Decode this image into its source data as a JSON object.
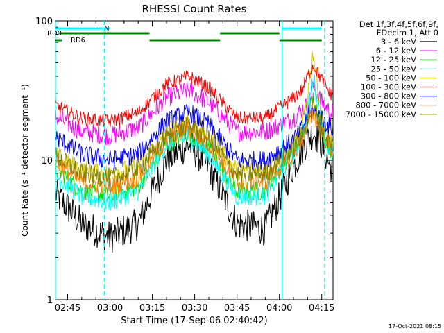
{
  "footer": {
    "timestamp": "17-Oct-2021 08:15"
  },
  "colors": {
    "3-6": "#000000",
    "6-12": "#ff00ff",
    "12-25": "#00e000",
    "25-50": "#00ffff",
    "50-100": "#d8c800",
    "100-300": "#ff0000",
    "300-800": "#0000ff",
    "800-7000": "#ff8000",
    "7000-15000": "#808000",
    "flag_cyan": "#00ffff",
    "flag_green": "#008000",
    "vline": "#00ffff"
  },
  "chart_data": {
    "type": "line",
    "title": "RHESSI Count Rates",
    "xlabel": "Start Time (17-Sep-06 02:40:42)",
    "ylabel": "Count Rate (s⁻¹ detector segment⁻¹)",
    "yscale": "log",
    "ylim": [
      1,
      100
    ],
    "xlim": [
      "02:40:42",
      "04:19:00"
    ],
    "x_ticks": [
      "02:45",
      "03:00",
      "03:15",
      "03:30",
      "03:45",
      "04:00",
      "04:15"
    ],
    "y_ticks": [
      "1",
      "10",
      "100"
    ],
    "legend_header": [
      "Det 1f,3f,4f,5f,6f,9f,",
      "FDecim 1, Att 0"
    ],
    "legend_position": "right",
    "x": [
      "02:40",
      "02:50",
      "03:00",
      "03:10",
      "03:20",
      "03:28",
      "03:35",
      "03:45",
      "03:55",
      "04:05",
      "04:08",
      "04:10",
      "04:12",
      "04:15",
      "04:18"
    ],
    "series": [
      {
        "name": "3 - 6 keV",
        "color": "#000000",
        "values": [
          6,
          3.5,
          2.8,
          3.5,
          10,
          13,
          9,
          3.5,
          3.2,
          9,
          12,
          14,
          16,
          13,
          9
        ]
      },
      {
        "name": "6 - 12 keV",
        "color": "#ff00ff",
        "values": [
          21,
          16,
          15,
          17,
          28,
          32,
          26,
          16,
          16,
          20,
          23,
          25,
          34,
          26,
          22
        ]
      },
      {
        "name": "12 - 25 keV",
        "color": "#00e000",
        "values": [
          9,
          6,
          5.5,
          6.5,
          13,
          16,
          12,
          6,
          6,
          12,
          15,
          20,
          28,
          17,
          12
        ]
      },
      {
        "name": "25 - 50 keV",
        "color": "#00ffff",
        "values": [
          8,
          5.5,
          5,
          6,
          13,
          15,
          11,
          5.5,
          5.5,
          11,
          15,
          22,
          40,
          18,
          11
        ]
      },
      {
        "name": "50 - 100 keV",
        "color": "#d8c800",
        "values": [
          11,
          8.5,
          8,
          9,
          16,
          20,
          15,
          8.5,
          8.5,
          13,
          17,
          30,
          60,
          20,
          14
        ]
      },
      {
        "name": "100 - 300 keV",
        "color": "#ff0000",
        "values": [
          25,
          20,
          19,
          22,
          35,
          40,
          33,
          20,
          20,
          28,
          32,
          40,
          48,
          38,
          30
        ]
      },
      {
        "name": "300 - 800 keV",
        "color": "#0000ff",
        "values": [
          15,
          11,
          10,
          11,
          19,
          22,
          18,
          10,
          10,
          14,
          17,
          20,
          23,
          20,
          17
        ]
      },
      {
        "name": "800 - 7000 keV",
        "color": "#ff8000",
        "values": [
          10,
          7,
          6.5,
          7.5,
          14,
          17,
          13,
          7,
          7,
          11,
          14,
          18,
          22,
          16,
          12
        ]
      },
      {
        "name": "7000 - 15000 keV",
        "color": "#808000",
        "values": [
          11,
          8,
          7.5,
          8.5,
          15,
          18,
          14,
          8,
          8,
          12,
          15,
          19,
          25,
          17,
          13
        ]
      }
    ],
    "annotations": {
      "flags": [
        {
          "label": "N",
          "color": "cyan",
          "segments": [
            [
              "02:40:42",
              "03:00"
            ],
            [
              "04:01",
              "04:15"
            ]
          ]
        },
        {
          "label": "RD0",
          "color": "green",
          "segments": [
            [
              "02:42",
              "03:14"
            ],
            [
              "03:39",
              "04:00"
            ]
          ]
        },
        {
          "label": "RD6",
          "color": "green",
          "segments": [
            [
              "02:40:42",
              "02:43"
            ],
            [
              "03:14",
              "03:39"
            ],
            [
              "04:00",
              "04:15"
            ]
          ]
        }
      ],
      "vlines": [
        {
          "time": "02:40:42",
          "style": "solid"
        },
        {
          "time": "02:58",
          "style": "dashed"
        },
        {
          "time": "04:01",
          "style": "solid"
        },
        {
          "time": "04:16",
          "style": "dashed"
        }
      ]
    }
  }
}
